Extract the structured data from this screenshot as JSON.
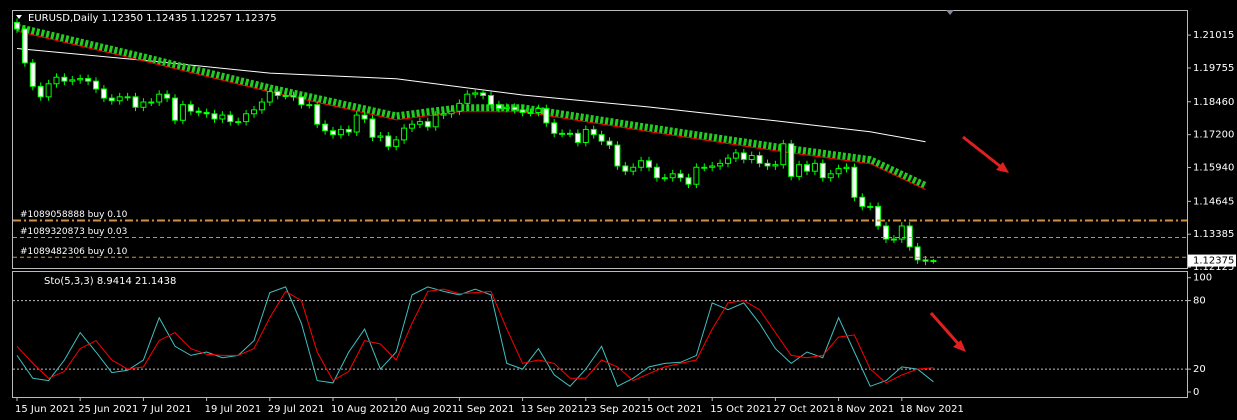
{
  "chart_data": [
    {
      "type": "candlestick",
      "title": "EURUSD,Daily 1.12350 1.12435 1.12257 1.12375",
      "categories": [
        "15 Jun 2021",
        null,
        null,
        null,
        null,
        null,
        null,
        null,
        "25 Jun 2021",
        null,
        null,
        null,
        null,
        null,
        null,
        null,
        "7 Jul 2021",
        null,
        null,
        null,
        null,
        null,
        null,
        null,
        "19 Jul 2021",
        null,
        null,
        null,
        null,
        null,
        null,
        null,
        "29 Jul 2021",
        null,
        null,
        null,
        null,
        null,
        null,
        null,
        "10 Aug 2021",
        null,
        null,
        null,
        null,
        null,
        null,
        null,
        "20 Aug 2021",
        null,
        null,
        null,
        null,
        null,
        null,
        null,
        "1 Sep 2021",
        null,
        null,
        null,
        null,
        null,
        null,
        null,
        "13 Sep 2021",
        null,
        null,
        null,
        null,
        null,
        null,
        null,
        "23 Sep 2021",
        null,
        null,
        null,
        null,
        null,
        null,
        null,
        "5 Oct 2021",
        null,
        null,
        null,
        null,
        null,
        null,
        null,
        "15 Oct 2021",
        null,
        null,
        null,
        null,
        null,
        null,
        null,
        "27 Oct 2021",
        null,
        null,
        null,
        null,
        null,
        null,
        null,
        "8 Nov 2021",
        null,
        null,
        null,
        null,
        null,
        null,
        null,
        "18 Nov 2021",
        null,
        null,
        null,
        null
      ],
      "open": [
        1.215,
        1.2125,
        1.1995,
        1.1905,
        1.1865,
        1.1915,
        1.194,
        1.1925,
        1.193,
        1.1935,
        1.1925,
        1.1895,
        1.186,
        1.185,
        1.1865,
        1.1865,
        1.1825,
        1.1845,
        1.1845,
        1.1875,
        1.186,
        1.1775,
        1.1835,
        1.181,
        1.1805,
        1.18,
        1.178,
        1.1795,
        1.177,
        1.177,
        1.18,
        1.1815,
        1.1845,
        1.1885,
        1.187,
        1.187,
        1.1865,
        1.1835,
        1.1835,
        1.176,
        1.1735,
        1.172,
        1.174,
        1.173,
        1.1795,
        1.178,
        1.171,
        1.1715,
        1.1675,
        1.17,
        1.1745,
        1.176,
        1.177,
        1.175,
        1.1795,
        1.18,
        1.181,
        1.184,
        1.1875,
        1.188,
        1.187,
        1.1835,
        1.182,
        1.1825,
        1.1815,
        1.1805,
        1.1805,
        1.182,
        1.1765,
        1.1725,
        1.1725,
        1.1725,
        1.169,
        1.174,
        1.172,
        1.1695,
        1.168,
        1.16,
        1.158,
        1.1595,
        1.162,
        1.1595,
        1.1555,
        1.1555,
        1.157,
        1.1555,
        1.153,
        1.1595,
        1.1595,
        1.16,
        1.161,
        1.163,
        1.165,
        1.1625,
        1.164,
        1.161,
        1.16,
        1.1605,
        1.1685,
        1.156,
        1.1605,
        1.158,
        1.161,
        1.1555,
        1.157,
        1.159,
        1.1595,
        1.148,
        1.1445,
        1.1445,
        1.137,
        1.132,
        1.132,
        1.137,
        1.129,
        1.124,
        1.1235
      ],
      "high": [
        1.2165,
        1.214,
        1.201,
        1.192,
        1.193,
        1.1955,
        1.1955,
        1.1945,
        1.195,
        1.195,
        1.194,
        1.191,
        1.1875,
        1.188,
        1.188,
        1.188,
        1.186,
        1.186,
        1.189,
        1.189,
        1.1875,
        1.185,
        1.185,
        1.1825,
        1.182,
        1.1815,
        1.181,
        1.181,
        1.1785,
        1.1815,
        1.183,
        1.186,
        1.19,
        1.19,
        1.1885,
        1.1885,
        1.188,
        1.185,
        1.185,
        1.1775,
        1.175,
        1.1755,
        1.1755,
        1.181,
        1.181,
        1.1795,
        1.173,
        1.173,
        1.1715,
        1.176,
        1.1775,
        1.1785,
        1.1785,
        1.181,
        1.1815,
        1.1825,
        1.1855,
        1.189,
        1.1895,
        1.1895,
        1.1885,
        1.185,
        1.184,
        1.184,
        1.183,
        1.182,
        1.1835,
        1.1835,
        1.178,
        1.174,
        1.174,
        1.174,
        1.1755,
        1.1755,
        1.1735,
        1.171,
        1.1695,
        1.1615,
        1.161,
        1.1635,
        1.1635,
        1.161,
        1.157,
        1.1585,
        1.1585,
        1.157,
        1.161,
        1.161,
        1.1615,
        1.1625,
        1.1645,
        1.1665,
        1.1665,
        1.1655,
        1.1655,
        1.1625,
        1.162,
        1.17,
        1.17,
        1.162,
        1.162,
        1.1625,
        1.1625,
        1.1585,
        1.1605,
        1.161,
        1.161,
        1.1495,
        1.146,
        1.146,
        1.1385,
        1.1335,
        1.1385,
        1.1385,
        1.1305,
        1.1255,
        1.12435
      ],
      "low": [
        1.211,
        1.198,
        1.189,
        1.185,
        1.185,
        1.19,
        1.191,
        1.191,
        1.1915,
        1.191,
        1.188,
        1.1845,
        1.1835,
        1.1835,
        1.185,
        1.181,
        1.181,
        1.183,
        1.183,
        1.1845,
        1.176,
        1.176,
        1.1795,
        1.179,
        1.1785,
        1.1765,
        1.1765,
        1.1755,
        1.1755,
        1.1755,
        1.1785,
        1.18,
        1.183,
        1.1855,
        1.1855,
        1.185,
        1.182,
        1.182,
        1.1745,
        1.172,
        1.1705,
        1.1705,
        1.1715,
        1.1715,
        1.1765,
        1.1695,
        1.1695,
        1.166,
        1.166,
        1.1685,
        1.173,
        1.1745,
        1.1735,
        1.1735,
        1.178,
        1.1785,
        1.1795,
        1.1825,
        1.186,
        1.1855,
        1.182,
        1.1805,
        1.1805,
        1.18,
        1.179,
        1.179,
        1.179,
        1.175,
        1.171,
        1.171,
        1.171,
        1.1675,
        1.1675,
        1.1705,
        1.168,
        1.1665,
        1.1585,
        1.1565,
        1.1565,
        1.158,
        1.158,
        1.154,
        1.154,
        1.154,
        1.154,
        1.1515,
        1.1515,
        1.158,
        1.158,
        1.1585,
        1.1595,
        1.1615,
        1.161,
        1.161,
        1.1595,
        1.1585,
        1.1585,
        1.159,
        1.1545,
        1.1545,
        1.1565,
        1.1565,
        1.154,
        1.154,
        1.1555,
        1.1575,
        1.1465,
        1.143,
        1.143,
        1.1355,
        1.1305,
        1.1305,
        1.1305,
        1.1275,
        1.1225,
        1.122,
        1.12257
      ],
      "close": [
        1.2125,
        1.1995,
        1.1905,
        1.1865,
        1.1915,
        1.194,
        1.1925,
        1.193,
        1.1935,
        1.1925,
        1.1895,
        1.186,
        1.185,
        1.1865,
        1.1865,
        1.1825,
        1.1845,
        1.1845,
        1.1875,
        1.186,
        1.1775,
        1.1835,
        1.181,
        1.1805,
        1.18,
        1.178,
        1.1795,
        1.177,
        1.177,
        1.18,
        1.1815,
        1.1845,
        1.1885,
        1.187,
        1.187,
        1.1865,
        1.1835,
        1.1835,
        1.176,
        1.1735,
        1.172,
        1.174,
        1.173,
        1.1795,
        1.178,
        1.171,
        1.1715,
        1.1675,
        1.17,
        1.1745,
        1.176,
        1.177,
        1.175,
        1.1795,
        1.18,
        1.181,
        1.184,
        1.1875,
        1.188,
        1.187,
        1.1835,
        1.182,
        1.1825,
        1.1815,
        1.1805,
        1.1805,
        1.182,
        1.1765,
        1.1725,
        1.1725,
        1.1725,
        1.169,
        1.174,
        1.172,
        1.1695,
        1.168,
        1.16,
        1.158,
        1.1595,
        1.162,
        1.1595,
        1.1555,
        1.1555,
        1.157,
        1.1555,
        1.153,
        1.1595,
        1.1595,
        1.16,
        1.161,
        1.163,
        1.165,
        1.1625,
        1.164,
        1.161,
        1.16,
        1.1605,
        1.1685,
        1.156,
        1.1605,
        1.158,
        1.161,
        1.1555,
        1.157,
        1.159,
        1.1595,
        1.148,
        1.1445,
        1.1445,
        1.137,
        1.132,
        1.132,
        1.137,
        1.129,
        1.124,
        1.1235,
        1.12375
      ],
      "up_fill": "#000000",
      "down_fill": "#ffffff",
      "outline_color": "#00ff00",
      "lines": [
        {
          "color": "#ffffff",
          "x": [
            0,
            16,
            32,
            48,
            64,
            80,
            96,
            108,
            115
          ],
          "values": [
            1.205,
            1.2005,
            1.1956,
            1.1934,
            1.1872,
            1.1826,
            1.1773,
            1.1731,
            1.1693
          ]
        },
        {
          "color": "#22cc22",
          "edge_color": "#ff0000",
          "x": [
            0,
            16,
            32,
            48,
            56,
            64,
            80,
            96,
            108,
            115
          ],
          "values": [
            1.2132,
            1.2018,
            1.1899,
            1.1792,
            1.1823,
            1.1823,
            1.1747,
            1.1674,
            1.1624,
            1.1525
          ]
        }
      ],
      "orders": [
        {
          "label": "#1089058888 buy 0.10",
          "price": 1.1391,
          "color": "#d09040",
          "style": "dash-dot"
        },
        {
          "label": "#1089320873 buy 0.03",
          "price": 1.1326,
          "color": "#d09040",
          "style": "dashed"
        },
        {
          "label": "#1089482306 buy 0.10",
          "price": 1.125,
          "color": "#d09040",
          "style": "dashed"
        }
      ],
      "last_price_label": "1.12375",
      "ylim": [
        1.1209,
        1.219
      ],
      "yticks": [
        1.21015,
        1.19755,
        {
          "value": 1.1846,
          "label": "1.18460"
        },
        {
          "value": 1.172,
          "label": "1.17200"
        },
        {
          "value": 1.1594,
          "label": "1.15940"
        },
        1.14645,
        1.13385,
        1.12125
      ]
    },
    {
      "type": "line",
      "title": "Sto(5,3,3) 8.9414 21.1438",
      "x": [
        0,
        2,
        4,
        6,
        8,
        10,
        12,
        14,
        16,
        18,
        20,
        22,
        24,
        26,
        28,
        30,
        32,
        34,
        36,
        38,
        40,
        42,
        44,
        46,
        48,
        50,
        52,
        54,
        56,
        58,
        60,
        62,
        64,
        66,
        68,
        70,
        72,
        74,
        76,
        78,
        80,
        82,
        84,
        86,
        88,
        90,
        92,
        94,
        96,
        98,
        100,
        102,
        104,
        106,
        108,
        110,
        112,
        114,
        116
      ],
      "series": [
        {
          "color": "#40c0c0",
          "values": [
            32,
            12,
            10,
            28,
            52,
            35,
            17,
            19,
            28,
            65,
            40,
            32,
            35,
            30,
            32,
            45,
            87,
            92,
            60,
            10,
            8,
            35,
            55,
            20,
            35,
            85,
            92,
            88,
            85,
            90,
            85,
            25,
            20,
            38,
            15,
            5,
            20,
            40,
            5,
            12,
            22,
            25,
            26,
            32,
            78,
            72,
            78,
            60,
            38,
            25,
            35,
            30,
            65,
            35,
            5,
            10,
            22,
            20,
            8.9414
          ]
        },
        {
          "color": "#ff0000",
          "values": [
            40,
            25,
            12,
            18,
            38,
            45,
            28,
            20,
            22,
            45,
            52,
            38,
            33,
            32,
            32,
            38,
            65,
            88,
            80,
            35,
            10,
            18,
            45,
            42,
            28,
            60,
            88,
            90,
            86,
            87,
            88,
            55,
            25,
            28,
            25,
            12,
            12,
            28,
            22,
            10,
            16,
            22,
            25,
            28,
            55,
            78,
            80,
            72,
            52,
            32,
            30,
            32,
            48,
            50,
            20,
            8,
            15,
            20,
            21.1438
          ]
        }
      ],
      "levels": [
        80,
        20
      ],
      "ylim": [
        -3.5,
        105
      ],
      "yticks": [
        100,
        80,
        20,
        0
      ]
    }
  ]
}
